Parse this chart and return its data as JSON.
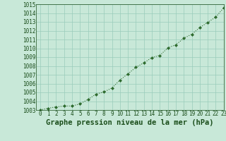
{
  "x": [
    0,
    1,
    2,
    3,
    4,
    5,
    6,
    7,
    8,
    9,
    10,
    11,
    12,
    13,
    14,
    15,
    16,
    17,
    18,
    19,
    20,
    21,
    22,
    23
  ],
  "y": [
    1003.0,
    1003.2,
    1003.35,
    1003.45,
    1003.45,
    1003.7,
    1004.2,
    1004.8,
    1005.05,
    1005.5,
    1006.4,
    1007.1,
    1007.85,
    1008.35,
    1008.95,
    1009.2,
    1010.05,
    1010.4,
    1011.15,
    1011.6,
    1012.35,
    1012.95,
    1013.55,
    1014.6
  ],
  "line_color": "#2d6a2d",
  "marker_color": "#2d6a2d",
  "bg_color": "#c8e8d8",
  "grid_color": "#99ccbb",
  "title": "Graphe pression niveau de la mer (hPa)",
  "ylim": [
    1003,
    1015
  ],
  "xlim": [
    -0.5,
    23
  ],
  "yticks": [
    1003,
    1004,
    1005,
    1006,
    1007,
    1008,
    1009,
    1010,
    1011,
    1012,
    1013,
    1014,
    1015
  ],
  "xticks": [
    0,
    1,
    2,
    3,
    4,
    5,
    6,
    7,
    8,
    9,
    10,
    11,
    12,
    13,
    14,
    15,
    16,
    17,
    18,
    19,
    20,
    21,
    22,
    23
  ],
  "title_fontsize": 7.5,
  "tick_fontsize": 5.5,
  "title_color": "#1a4d1a",
  "tick_color": "#1a4d1a"
}
